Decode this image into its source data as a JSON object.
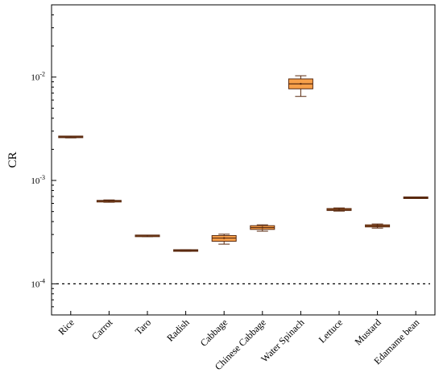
{
  "chart_data": {
    "type": "box",
    "title": "",
    "xlabel": "",
    "ylabel": "CR",
    "yscale": "log",
    "ylim": [
      5e-05,
      0.05
    ],
    "yticks": [
      {
        "value": 0.0001,
        "base": "10",
        "exp": "-4"
      },
      {
        "value": 0.001,
        "base": "10",
        "exp": "-3"
      },
      {
        "value": 0.01,
        "base": "10",
        "exp": "-2"
      }
    ],
    "reference_line": {
      "value": 0.0001,
      "style": "dashed"
    },
    "box_color": "#F7A04A",
    "edge_color": "#5a2a10",
    "categories": [
      "Rice",
      "Carrot",
      "Taro",
      "Radish",
      "Cabbage",
      "Chinese Cabbage",
      "Water Spinach",
      "Lettuce",
      "Mustard",
      "Edamame bean"
    ],
    "boxes": [
      {
        "category": "Rice",
        "whislo": 0.00258,
        "q1": 0.00262,
        "med": 0.00264,
        "q3": 0.00266,
        "whishi": 0.00268
      },
      {
        "category": "Carrot",
        "whislo": 0.000615,
        "q1": 0.00062,
        "med": 0.000632,
        "q3": 0.00064,
        "whishi": 0.000648
      },
      {
        "category": "Taro",
        "whislo": 0.000286,
        "q1": 0.000289,
        "med": 0.000291,
        "q3": 0.000293,
        "whishi": 0.000295
      },
      {
        "category": "Radish",
        "whislo": 0.000206,
        "q1": 0.000208,
        "med": 0.00021,
        "q3": 0.000212,
        "whishi": 0.000214
      },
      {
        "category": "Cabbage",
        "whislo": 0.000242,
        "q1": 0.000258,
        "med": 0.000277,
        "q3": 0.000293,
        "whishi": 0.000302
      },
      {
        "category": "Chinese Cabbage",
        "whislo": 0.000323,
        "q1": 0.000336,
        "med": 0.00035,
        "q3": 0.000365,
        "whishi": 0.000372
      },
      {
        "category": "Water Spinach",
        "whislo": 0.0065,
        "q1": 0.0077,
        "med": 0.0086,
        "q3": 0.0096,
        "whishi": 0.0103
      },
      {
        "category": "Lettuce",
        "whislo": 0.000505,
        "q1": 0.000512,
        "med": 0.000522,
        "q3": 0.000535,
        "whishi": 0.000542
      },
      {
        "category": "Mustard",
        "whislo": 0.000346,
        "q1": 0.000355,
        "med": 0.000363,
        "q3": 0.000372,
        "whishi": 0.000379
      },
      {
        "category": "Edamame bean",
        "whislo": 0.00067,
        "q1": 0.000676,
        "med": 0.00068,
        "q3": 0.000685,
        "whishi": 0.000688
      }
    ]
  }
}
